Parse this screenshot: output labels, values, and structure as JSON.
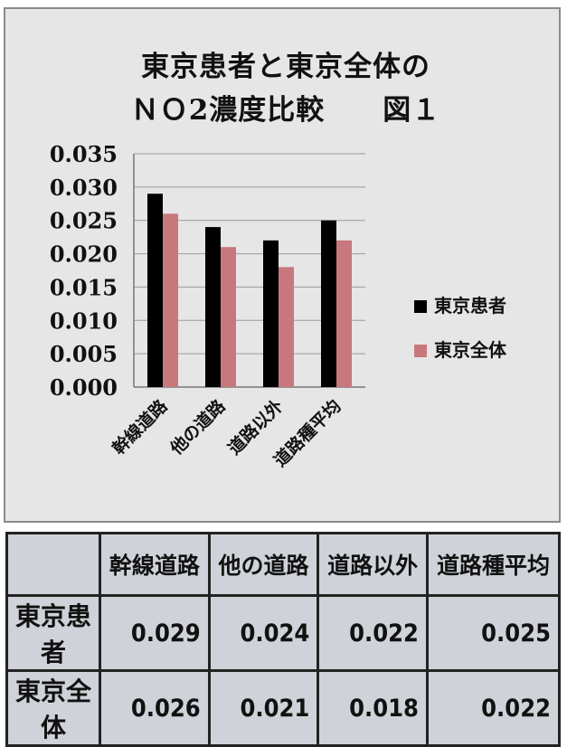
{
  "title_lines": [
    "東京患者と東京全体の",
    "ＮＯ2濃度比較　　図１"
  ],
  "colors": {
    "series1": "#000000",
    "series2": "#c8787c",
    "grid": "#9a9a9a",
    "panel": "#e6e6e6"
  },
  "chart_data": {
    "type": "bar",
    "categories": [
      "幹線道路",
      "他の道路",
      "道路以外",
      "道路種平均"
    ],
    "series": [
      {
        "name": "東京患者",
        "values": [
          0.029,
          0.024,
          0.022,
          0.025
        ]
      },
      {
        "name": "東京全体",
        "values": [
          0.026,
          0.021,
          0.018,
          0.022
        ]
      }
    ],
    "yticks": [
      "0.000",
      "0.005",
      "0.010",
      "0.015",
      "0.020",
      "0.025",
      "0.030",
      "0.035"
    ],
    "ylim": [
      0,
      0.035
    ],
    "grid": true,
    "legend_position": "right"
  },
  "table": {
    "header": [
      "",
      "幹線道路",
      "他の道路",
      "道路以外",
      "道路種平均"
    ],
    "rows": [
      {
        "label": "東京患者",
        "values": [
          "0.029",
          "0.024",
          "0.022",
          "0.025"
        ]
      },
      {
        "label": "東京全体",
        "values": [
          "0.026",
          "0.021",
          "0.018",
          "0.022"
        ]
      }
    ]
  }
}
